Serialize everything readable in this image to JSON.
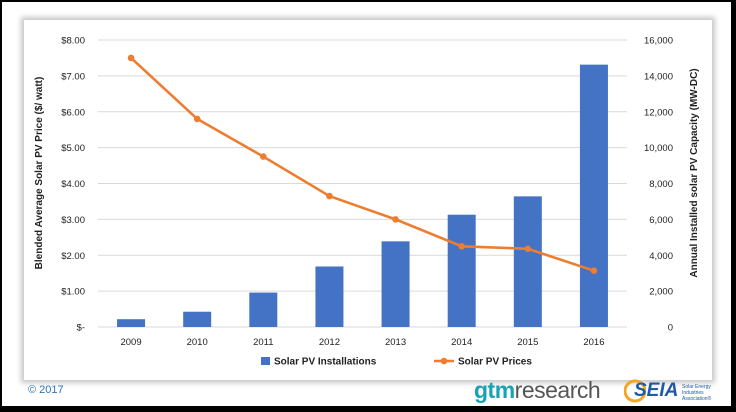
{
  "footer": {
    "copyright": "© 2017",
    "gtm_logo_part1": "gtm",
    "gtm_logo_part2": "research",
    "seia_logo_text": "SEIA",
    "seia_logo_subtext": "Solar Energy Industries Association®"
  },
  "colors": {
    "bar": "#4472c4",
    "line": "#ed7d31",
    "gridline": "#d9d9d9",
    "seia_sun": "#f5a623"
  },
  "chart_data": {
    "type": "bar",
    "categories": [
      "2009",
      "2010",
      "2011",
      "2012",
      "2013",
      "2014",
      "2015",
      "2016"
    ],
    "series": [
      {
        "name": "Solar PV Installations",
        "type": "bar",
        "axis": "right",
        "values": [
          435,
          852,
          1919,
          3373,
          4776,
          6260,
          7283,
          14626
        ]
      },
      {
        "name": "Solar PV Prices",
        "type": "line",
        "axis": "left",
        "values": [
          7.5,
          5.8,
          4.75,
          3.65,
          3.0,
          2.25,
          2.18,
          1.57
        ]
      }
    ],
    "ylabel": "Blended Average Solar PV Price ($/ watt)",
    "y2label": "Annual Installed solar PV Capacity (MW-DC)",
    "ylim": [
      0,
      8
    ],
    "y2lim": [
      0,
      16000
    ],
    "yticks": [
      "$-",
      "$1.00",
      "$2.00",
      "$3.00",
      "$4.00",
      "$5.00",
      "$6.00",
      "$7.00",
      "$8.00"
    ],
    "y2ticks": [
      "0",
      "2,000",
      "4,000",
      "6,000",
      "8,000",
      "10,000",
      "12,000",
      "14,000",
      "16,000"
    ],
    "grid": true,
    "legend_position": "bottom"
  }
}
